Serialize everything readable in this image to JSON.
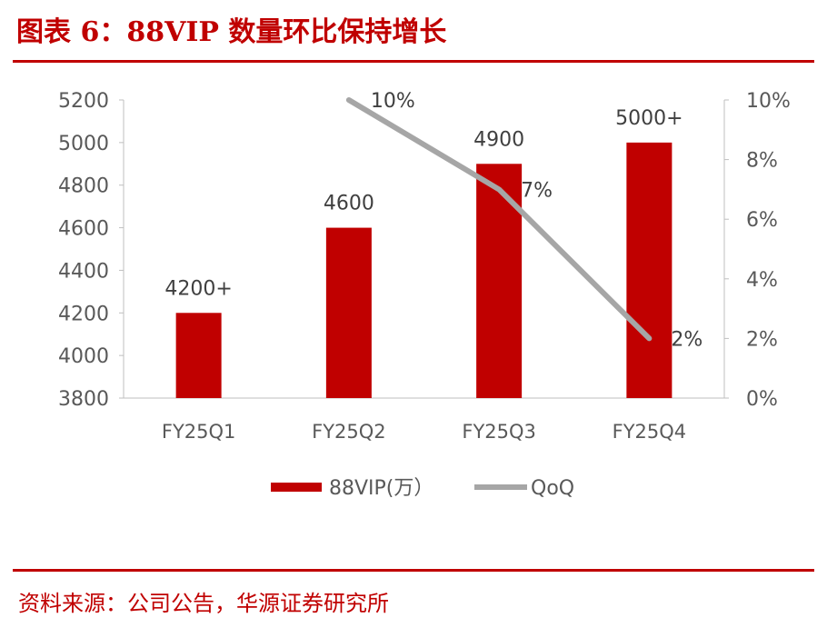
{
  "header": {
    "title": "图表 6：88VIP 数量环比保持增长"
  },
  "footer": {
    "source": "资料来源：公司公告，华源证券研究所"
  },
  "chart_data": {
    "type": "bar",
    "categories": [
      "FY25Q1",
      "FY25Q2",
      "FY25Q3",
      "FY25Q4"
    ],
    "series": [
      {
        "name": "88VIP(万）",
        "type": "bar",
        "axis": "left",
        "values": [
          4200,
          4600,
          4900,
          5000
        ],
        "labels": [
          "4200+",
          "4600",
          "4900",
          "5000+"
        ],
        "color": "#c00000"
      },
      {
        "name": "QoQ",
        "type": "line",
        "axis": "right",
        "values": [
          null,
          10,
          7,
          2
        ],
        "labels": [
          "",
          "10%",
          "7%",
          "2%"
        ],
        "color": "#a6a6a6"
      }
    ],
    "y_left": {
      "min": 3800,
      "max": 5200,
      "ticks": [
        "5200",
        "5000",
        "4800",
        "4600",
        "4400",
        "4200",
        "4000",
        "3800"
      ]
    },
    "y_right": {
      "min": 0,
      "max": 10,
      "ticks": [
        "10%",
        "8%",
        "6%",
        "4%",
        "2%",
        "0%"
      ]
    },
    "grid": false,
    "legend": "bottom"
  }
}
